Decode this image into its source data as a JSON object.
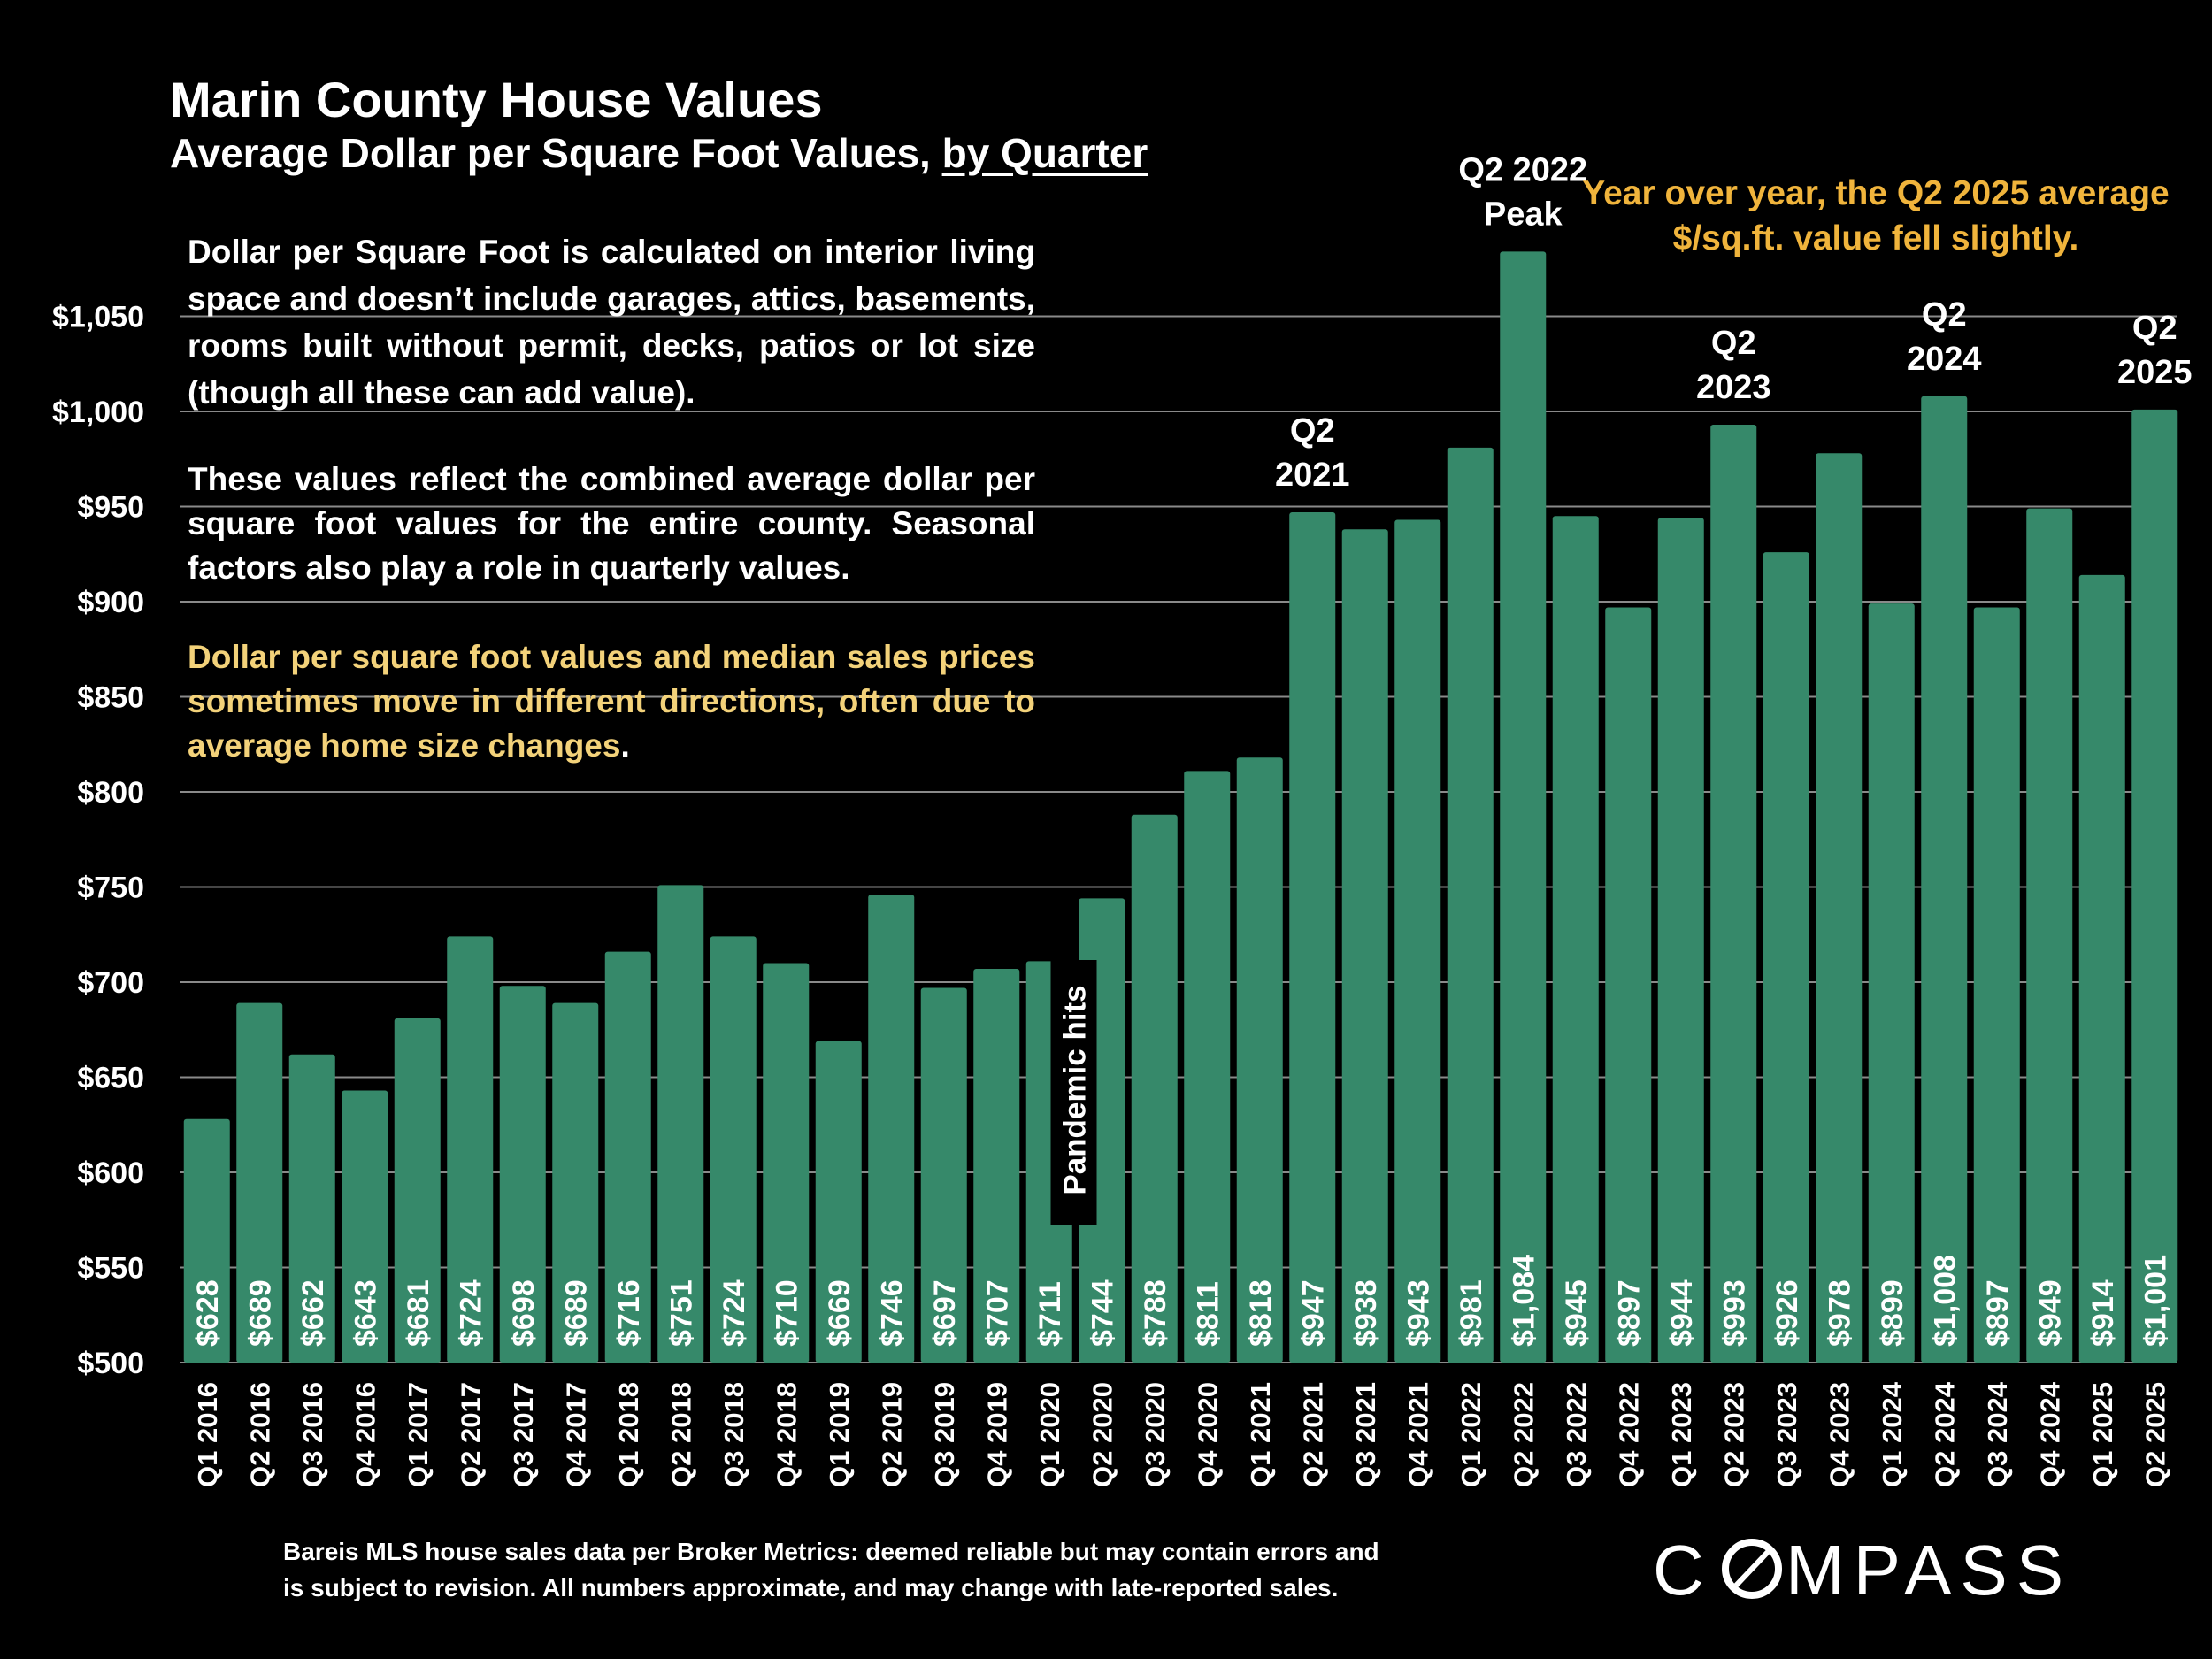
{
  "title": "Marin County House Values",
  "subtitle_main": "Average Dollar per Square Foot Values, ",
  "subtitle_link": "by Quarter",
  "notes": {
    "p1": "Dollar per Square Foot is calculated on interior living space and doesn’t include garages, attics, basements, rooms built without permit, decks, patios or lot size (though all these can add value).",
    "p2": "These values reflect the combined average dollar per square foot values for the entire county. Seasonal factors also play a role in quarterly values.",
    "p3": "Dollar per square foot values and median sales prices sometimes move in different directions, often due to average home size changes",
    "p3_end": "."
  },
  "yoy_note": "Year over year, the Q2 2025 average $/sq.ft. value fell slightly.",
  "footer": {
    "line1": "Bareis MLS house sales data per Broker Metrics:  deemed reliable but may contain errors and",
    "line2": "is subject to revision. All numbers approximate, and may change with late-reported sales."
  },
  "logo": "COMPASS",
  "colors": {
    "bar": "#36896a",
    "background": "#000000",
    "gridline": "#8a8a8a",
    "highlight": "#f0b43c",
    "note": "#f3d27a"
  },
  "chart_data": {
    "type": "bar",
    "categories": [
      "Q1 2016",
      "Q2 2016",
      "Q3 2016",
      "Q4 2016",
      "Q1 2017",
      "Q2 2017",
      "Q3 2017",
      "Q4 2017",
      "Q1 2018",
      "Q2 2018",
      "Q3 2018",
      "Q4 2018",
      "Q1 2019",
      "Q2 2019",
      "Q3 2019",
      "Q4 2019",
      "Q1 2020",
      "Q2 2020",
      "Q3 2020",
      "Q4 2020",
      "Q1 2021",
      "Q2 2021",
      "Q3 2021",
      "Q4 2021",
      "Q1 2022",
      "Q2 2022",
      "Q3 2022",
      "Q4 2022",
      "Q1 2023",
      "Q2 2023",
      "Q3 2023",
      "Q4 2023",
      "Q1 2024",
      "Q2 2024",
      "Q3 2024",
      "Q4 2024",
      "Q1 2025",
      "Q2 2025"
    ],
    "values": [
      628,
      689,
      662,
      643,
      681,
      724,
      698,
      689,
      716,
      751,
      724,
      710,
      669,
      746,
      697,
      707,
      711,
      744,
      788,
      811,
      818,
      947,
      938,
      943,
      981,
      1084,
      945,
      897,
      944,
      993,
      926,
      978,
      899,
      1008,
      897,
      949,
      914,
      1001
    ],
    "value_labels": [
      "$628",
      "$689",
      "$662",
      "$643",
      "$681",
      "$724",
      "$698",
      "$689",
      "$716",
      "$751",
      "$724",
      "$710",
      "$669",
      "$746",
      "$697",
      "$707",
      "$711",
      "$744",
      "$788",
      "$811",
      "$818",
      "$947",
      "$938",
      "$943",
      "$981",
      "$1,084",
      "$945",
      "$897",
      "$944",
      "$993",
      "$926",
      "$978",
      "$899",
      "$1,008",
      "$897",
      "$949",
      "$914",
      "$1,001"
    ],
    "ylim": [
      500,
      1100
    ],
    "yticks": [
      500,
      550,
      600,
      650,
      700,
      750,
      800,
      850,
      900,
      950,
      1000,
      1050
    ],
    "ytick_labels": [
      "$500",
      "$550",
      "$600",
      "$650",
      "$700",
      "$750",
      "$800",
      "$850",
      "$900",
      "$950",
      "$1,000",
      "$1,050"
    ],
    "grid": true,
    "annotations": [
      {
        "index": 21,
        "lines": [
          "Q2",
          "2021"
        ]
      },
      {
        "index": 25,
        "lines": [
          "Q2 2022",
          "Peak"
        ]
      },
      {
        "index": 29,
        "lines": [
          "Q2",
          "2023"
        ]
      },
      {
        "index": 33,
        "lines": [
          "Q2",
          "2024"
        ]
      },
      {
        "index": 37,
        "lines": [
          "Q2",
          "2025"
        ]
      }
    ],
    "event_label": {
      "index": 16,
      "text": "Pandemic hits"
    }
  }
}
